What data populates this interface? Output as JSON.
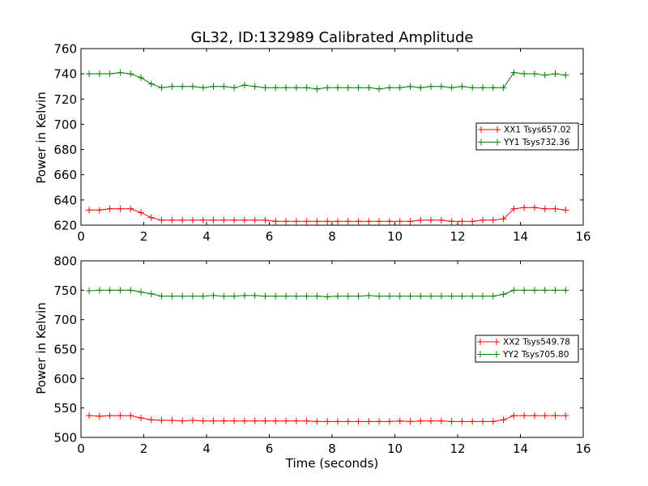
{
  "chart_data": [
    {
      "type": "line",
      "title": "GL32, ID:132989 Calibrated Amplitude",
      "xlabel": "",
      "ylabel": "Power in Kelvin",
      "xlim": [
        0,
        16
      ],
      "ylim": [
        620,
        760
      ],
      "xticks": [
        "0",
        "2",
        "4",
        "6",
        "8",
        "10",
        "12",
        "14",
        "16"
      ],
      "yticks": [
        "620",
        "640",
        "660",
        "680",
        "700",
        "720",
        "740",
        "760"
      ],
      "grid": false,
      "legend_position": "center-right",
      "x": [
        0.26,
        0.59,
        0.92,
        1.25,
        1.58,
        1.91,
        2.24,
        2.57,
        2.9,
        3.23,
        3.56,
        3.89,
        4.22,
        4.55,
        4.88,
        5.21,
        5.54,
        5.87,
        6.2,
        6.53,
        6.86,
        7.19,
        7.52,
        7.85,
        8.18,
        8.51,
        8.84,
        9.17,
        9.5,
        9.83,
        10.16,
        10.49,
        10.82,
        11.15,
        11.48,
        11.81,
        12.14,
        12.47,
        12.8,
        13.13,
        13.46,
        13.79,
        14.12,
        14.45,
        14.78,
        15.11,
        15.44
      ],
      "series": [
        {
          "name": "XX1 Tsys657.02",
          "color": "#ff0000",
          "values": [
            632,
            632,
            633,
            633,
            633,
            630,
            626,
            624,
            624,
            624,
            624,
            624,
            624,
            624,
            624,
            624,
            624,
            624,
            623,
            623,
            623,
            623,
            623,
            623,
            623,
            623,
            623,
            623,
            623,
            623,
            623,
            623,
            624,
            624,
            624,
            623,
            623,
            623,
            624,
            624,
            625,
            633,
            634,
            634,
            633,
            633,
            632
          ]
        },
        {
          "name": "YY1 Tsys732.36",
          "color": "#008000",
          "values": [
            740,
            740,
            740,
            741,
            740,
            737,
            732,
            729,
            730,
            730,
            730,
            729,
            730,
            730,
            729,
            731,
            730,
            729,
            729,
            729,
            729,
            729,
            728,
            729,
            729,
            729,
            729,
            729,
            728,
            729,
            729,
            730,
            729,
            730,
            730,
            729,
            730,
            729,
            729,
            729,
            729,
            741,
            740,
            740,
            739,
            740,
            739
          ]
        }
      ]
    },
    {
      "type": "line",
      "title": "",
      "xlabel": "Time (seconds)",
      "ylabel": "Power in Kelvin",
      "xlim": [
        0,
        16
      ],
      "ylim": [
        500,
        800
      ],
      "xticks": [
        "0",
        "2",
        "4",
        "6",
        "8",
        "10",
        "12",
        "14",
        "16"
      ],
      "yticks": [
        "500",
        "550",
        "600",
        "650",
        "700",
        "750",
        "800"
      ],
      "grid": false,
      "legend_position": "center-right",
      "x": [
        0.26,
        0.59,
        0.92,
        1.25,
        1.58,
        1.91,
        2.24,
        2.57,
        2.9,
        3.23,
        3.56,
        3.89,
        4.22,
        4.55,
        4.88,
        5.21,
        5.54,
        5.87,
        6.2,
        6.53,
        6.86,
        7.19,
        7.52,
        7.85,
        8.18,
        8.51,
        8.84,
        9.17,
        9.5,
        9.83,
        10.16,
        10.49,
        10.82,
        11.15,
        11.48,
        11.81,
        12.14,
        12.47,
        12.8,
        13.13,
        13.46,
        13.79,
        14.12,
        14.45,
        14.78,
        15.11,
        15.44
      ],
      "series": [
        {
          "name": "XX2 Tsys549.78",
          "color": "#ff0000",
          "values": [
            537,
            536,
            537,
            537,
            537,
            533,
            530,
            529,
            529,
            528,
            529,
            528,
            528,
            528,
            528,
            528,
            528,
            528,
            528,
            528,
            528,
            528,
            527,
            527,
            527,
            527,
            527,
            527,
            527,
            527,
            528,
            527,
            528,
            528,
            528,
            527,
            527,
            527,
            527,
            527,
            530,
            537,
            537,
            537,
            537,
            537,
            537
          ]
        },
        {
          "name": "YY2 Tsys705.80",
          "color": "#008000",
          "values": [
            749,
            750,
            750,
            750,
            750,
            747,
            744,
            740,
            740,
            740,
            740,
            740,
            741,
            740,
            740,
            741,
            741,
            740,
            740,
            740,
            740,
            740,
            740,
            739,
            740,
            740,
            740,
            741,
            740,
            740,
            740,
            740,
            740,
            740,
            740,
            740,
            740,
            740,
            740,
            740,
            743,
            750,
            750,
            750,
            750,
            750,
            750
          ]
        }
      ]
    }
  ]
}
